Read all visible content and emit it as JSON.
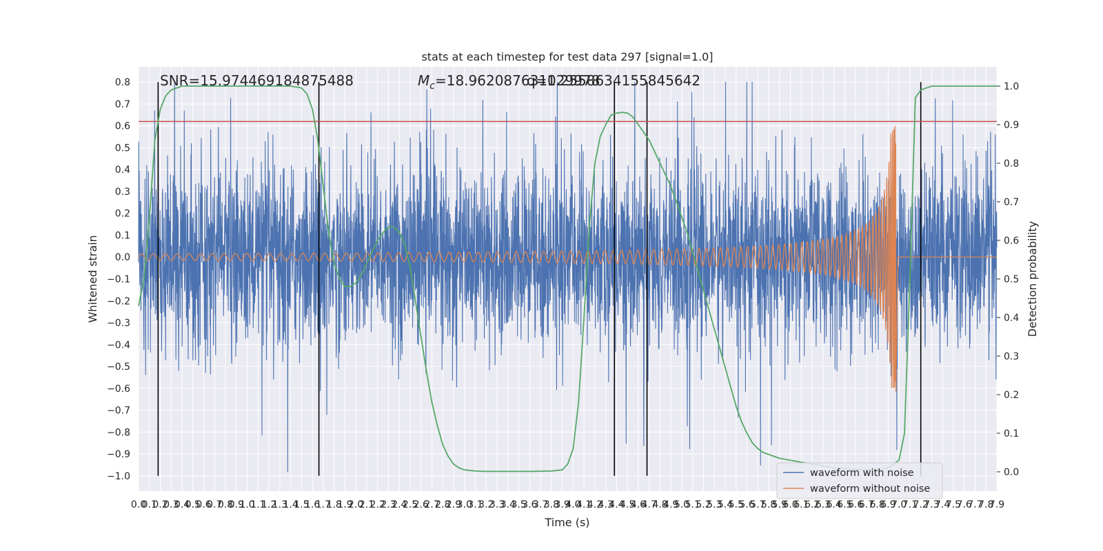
{
  "chart_data": {
    "type": "line",
    "title": "stats at each timestep for test data 297 [signal=1.0]",
    "xlabel": "Time (s)",
    "ylabel_left": "Whitened strain",
    "ylabel_right": "Detection probability",
    "xlim": [
      0.0,
      7.9
    ],
    "ylim_left": [
      -1.07,
      0.87
    ],
    "ylim_right": [
      -0.05,
      1.05
    ],
    "x_ticks": [
      0.0,
      0.1,
      0.2,
      0.3,
      0.4,
      0.5,
      0.6,
      0.7,
      0.8,
      0.9,
      1.0,
      1.1,
      1.2,
      1.3,
      1.4,
      1.5,
      1.6,
      1.7,
      1.8,
      1.9,
      2.0,
      2.1,
      2.2,
      2.3,
      2.4,
      2.5,
      2.6,
      2.7,
      2.8,
      2.9,
      3.0,
      3.1,
      3.2,
      3.3,
      3.4,
      3.5,
      3.6,
      3.7,
      3.8,
      3.9,
      4.0,
      4.1,
      4.2,
      4.3,
      4.4,
      4.5,
      4.6,
      4.7,
      4.8,
      4.9,
      5.0,
      5.1,
      5.2,
      5.3,
      5.4,
      5.5,
      5.6,
      5.7,
      5.8,
      5.9,
      6.0,
      6.1,
      6.2,
      6.3,
      6.4,
      6.5,
      6.6,
      6.7,
      6.8,
      6.9,
      7.0,
      7.1,
      7.2,
      7.3,
      7.4,
      7.5,
      7.6,
      7.7,
      7.8,
      7.9
    ],
    "x_tick_labels": [
      "0.0",
      "0.1",
      "0.2",
      "0.3",
      "0.4",
      "0.5",
      "0.6",
      "0.7",
      "0.8",
      "0.9",
      "1.0",
      "1.1",
      "1.2",
      "1.3",
      "1.4",
      "1.5",
      "1.6",
      "1.7",
      "1.8",
      "1.9",
      "2.0",
      "2.1",
      "2.2",
      "2.3",
      "2.4",
      "2.5",
      "2.6",
      "2.7",
      "2.8",
      "2.9",
      "3.0",
      "3.1",
      "3.2",
      "3.3",
      "3.4",
      "3.5",
      "3.6",
      "3.7",
      "3.8",
      "3.9",
      "4.0",
      "4.1",
      "4.2",
      "4.3",
      "4.4",
      "4.5",
      "4.6",
      "4.7",
      "4.8",
      "4.9",
      "5.0",
      "5.1",
      "5.2",
      "5.3",
      "5.4",
      "5.5",
      "5.6",
      "5.7",
      "5.8",
      "5.9",
      "6.0",
      "6.1",
      "6.2",
      "6.3",
      "6.4",
      "6.5",
      "6.6",
      "6.7",
      "6.8",
      "6.9",
      "7.0",
      "7.1",
      "7.2",
      "7.3",
      "7.4",
      "7.5",
      "7.6",
      "7.7",
      "7.8",
      "7.9"
    ],
    "y_ticks_left": [
      -1.0,
      -0.9,
      -0.8,
      -0.7,
      -0.6,
      -0.5,
      -0.4,
      -0.3,
      -0.2,
      -0.1,
      0.0,
      0.1,
      0.2,
      0.3,
      0.4,
      0.5,
      0.6,
      0.7,
      0.8
    ],
    "y_tick_labels_left": [
      "−1.0",
      "−0.9",
      "−0.8",
      "−0.7",
      "−0.6",
      "−0.5",
      "−0.4",
      "−0.3",
      "−0.2",
      "−0.1",
      "0.0",
      "0.1",
      "0.2",
      "0.3",
      "0.4",
      "0.5",
      "0.6",
      "0.7",
      "0.8"
    ],
    "y_ticks_right": [
      0.0,
      0.1,
      0.2,
      0.3,
      0.4,
      0.5,
      0.6,
      0.7,
      0.8,
      0.9,
      1.0
    ],
    "y_tick_labels_right": [
      "0.0",
      "0.1",
      "0.2",
      "0.3",
      "0.4",
      "0.5",
      "0.6",
      "0.7",
      "0.8",
      "0.9",
      "1.0"
    ],
    "grid": true,
    "legend_position": "lower-right",
    "series": [
      {
        "name": "waveform with noise",
        "color": "#4c72b0",
        "description_values": {
          "typical_band": [
            -0.3,
            0.3
          ],
          "min": -1.0,
          "max": 0.8
        }
      },
      {
        "name": "waveform without noise",
        "color": "#dd8452",
        "chirp": {
          "start_amplitude": 0.015,
          "peak_time": 6.97,
          "peak_amplitude": 0.63,
          "min_amplitude": -0.64
        }
      },
      {
        "axis": "right",
        "color": "#55a868",
        "x": [
          0.0,
          0.05,
          0.1,
          0.15,
          0.2,
          0.25,
          0.3,
          0.4,
          0.5,
          0.6,
          0.8,
          1.0,
          1.2,
          1.4,
          1.5,
          1.55,
          1.6,
          1.65,
          1.7,
          1.75,
          1.8,
          1.85,
          1.9,
          1.95,
          2.0,
          2.05,
          2.1,
          2.15,
          2.2,
          2.25,
          2.3,
          2.35,
          2.4,
          2.45,
          2.5,
          2.55,
          2.6,
          2.65,
          2.7,
          2.75,
          2.8,
          2.85,
          2.9,
          2.95,
          3.0,
          3.1,
          3.2,
          3.4,
          3.6,
          3.8,
          3.9,
          3.95,
          4.0,
          4.05,
          4.1,
          4.15,
          4.2,
          4.25,
          4.3,
          4.35,
          4.4,
          4.45,
          4.5,
          4.55,
          4.6,
          4.65,
          4.7,
          4.75,
          4.8,
          4.85,
          4.9,
          4.95,
          5.0,
          5.05,
          5.1,
          5.15,
          5.2,
          5.25,
          5.3,
          5.35,
          5.4,
          5.45,
          5.5,
          5.55,
          5.6,
          5.65,
          5.7,
          5.75,
          5.8,
          5.85,
          5.9,
          6.0,
          6.1,
          6.2,
          6.3,
          6.4,
          6.5,
          6.6,
          6.7,
          6.8,
          6.9,
          7.0,
          7.05,
          7.1,
          7.15,
          7.2,
          7.25,
          7.3,
          7.35,
          7.4,
          7.5,
          7.6,
          7.7,
          7.8,
          7.9
        ],
        "y": [
          0.43,
          0.5,
          0.66,
          0.86,
          0.94,
          0.975,
          0.99,
          1.0,
          1.0,
          1.0,
          1.0,
          1.0,
          1.0,
          1.0,
          0.995,
          0.98,
          0.94,
          0.86,
          0.74,
          0.62,
          0.54,
          0.5,
          0.48,
          0.48,
          0.49,
          0.51,
          0.54,
          0.57,
          0.6,
          0.62,
          0.635,
          0.635,
          0.62,
          0.59,
          0.53,
          0.44,
          0.35,
          0.26,
          0.18,
          0.12,
          0.07,
          0.04,
          0.02,
          0.01,
          0.005,
          0.002,
          0.001,
          0.001,
          0.001,
          0.002,
          0.005,
          0.02,
          0.06,
          0.18,
          0.4,
          0.64,
          0.8,
          0.87,
          0.9,
          0.925,
          0.93,
          0.932,
          0.93,
          0.92,
          0.9,
          0.88,
          0.86,
          0.83,
          0.8,
          0.77,
          0.74,
          0.7,
          0.66,
          0.62,
          0.57,
          0.52,
          0.47,
          0.42,
          0.37,
          0.32,
          0.27,
          0.22,
          0.17,
          0.13,
          0.1,
          0.075,
          0.06,
          0.05,
          0.045,
          0.04,
          0.035,
          0.03,
          0.025,
          0.02,
          0.015,
          0.01,
          0.008,
          0.006,
          0.005,
          0.005,
          0.01,
          0.03,
          0.1,
          0.5,
          0.97,
          0.99,
          0.995,
          1.0,
          1.0,
          1.0,
          1.0,
          1.0,
          1.0,
          1.0,
          1.0
        ]
      }
    ],
    "threshold": {
      "axis": "left",
      "value": 0.62,
      "color": "#c44e52"
    },
    "vertical_lines": [
      0.18,
      1.66,
      4.38,
      4.68,
      7.2
    ],
    "annotations": {
      "snr": "SNR=15.974469184875488",
      "mc_prefix": "M",
      "mc_subscript": "c",
      "mc_value": "=18.962087631029978",
      "q": "q=1.255863415584564‌2"
    }
  }
}
